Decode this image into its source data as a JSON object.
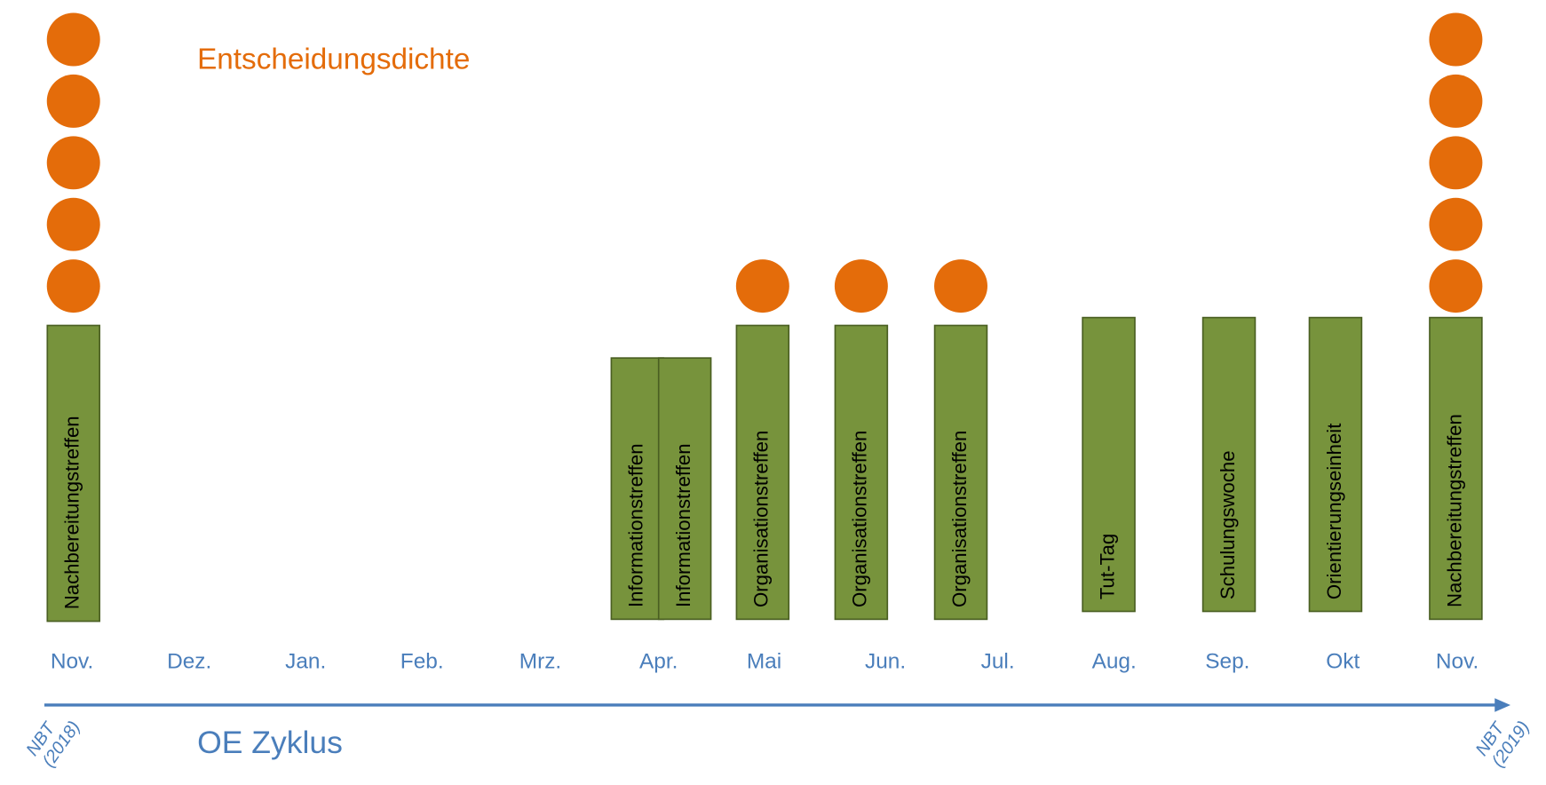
{
  "header": {
    "title": "Entscheidungsdichte"
  },
  "months": [
    "Nov.",
    "Dez.",
    "Jan.",
    "Feb.",
    "Mrz.",
    "Apr.",
    "Mai",
    "Jun.",
    "Jul.",
    "Aug.",
    "Sep.",
    "Okt",
    "Nov."
  ],
  "events": [
    {
      "label": "Nachbereitungstreffen",
      "dots": 5
    },
    {
      "label": "Informationstreffen",
      "dots": 0
    },
    {
      "label": "Informationstreffen",
      "dots": 0
    },
    {
      "label": "Organisationstreffen",
      "dots": 1
    },
    {
      "label": "Organisationstreffen",
      "dots": 1
    },
    {
      "label": "Organisationstreffen",
      "dots": 1
    },
    {
      "label": "Tut-Tag",
      "dots": 0
    },
    {
      "label": "Schulungswoche",
      "dots": 0
    },
    {
      "label": "Orientierungseinheit",
      "dots": 0
    },
    {
      "label": "Nachbereitungstreffen",
      "dots": 5
    }
  ],
  "footer": {
    "cycle": "OE Zyklus",
    "start": {
      "label": "NBT",
      "year": "(2018)"
    },
    "end": {
      "label": "NBT",
      "year": "(2019)"
    }
  }
}
